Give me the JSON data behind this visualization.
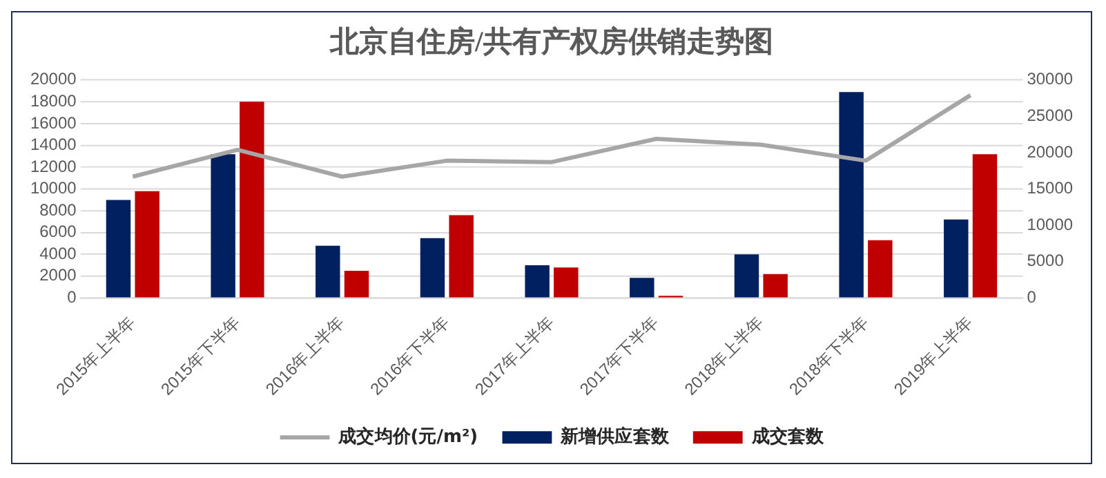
{
  "chart_data": {
    "type": "bar",
    "title": "北京自住房/共有产权房供销走势图",
    "categories": [
      "2015年上半年",
      "2015年下半年",
      "2016年上半年",
      "2016年下半年",
      "2017年上半年",
      "2017年下半年",
      "2018年上半年",
      "2018年下半年",
      "2019年上半年"
    ],
    "series": [
      {
        "name": "新增供应套数",
        "color": "#002060",
        "values": [
          9000,
          13200,
          4800,
          5500,
          3000,
          1850,
          4000,
          18900,
          7200
        ]
      },
      {
        "name": "成交套数",
        "color": "#c00000",
        "values": [
          9800,
          18000,
          2500,
          7600,
          2800,
          200,
          2200,
          5300,
          13200
        ]
      },
      {
        "name": "成交均价(元/m²)",
        "type": "line",
        "axis": "y2",
        "color": "#a6a6a6",
        "values": [
          16700,
          20400,
          16700,
          18900,
          18700,
          21900,
          21100,
          18900,
          27900
        ]
      }
    ],
    "ylim": [
      0,
      20000
    ],
    "yticks": [
      0,
      2000,
      4000,
      6000,
      8000,
      10000,
      12000,
      14000,
      16000,
      18000,
      20000
    ],
    "y2lim": [
      0,
      30000
    ],
    "y2ticks": [
      0,
      5000,
      10000,
      15000,
      20000,
      25000,
      30000
    ],
    "grid": "y",
    "legend": "bottom",
    "marker": "none"
  }
}
